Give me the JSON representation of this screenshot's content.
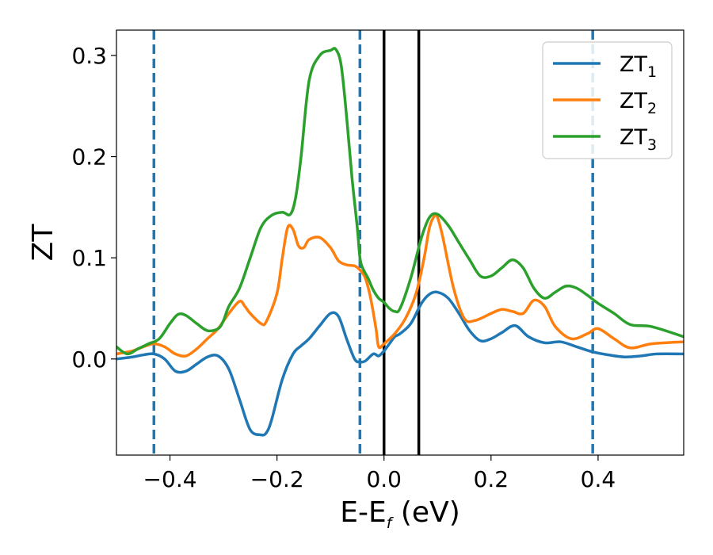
{
  "chart_data": {
    "type": "line",
    "xlabel": {
      "main": "E-E",
      "sub": "f",
      "unit": " (eV)"
    },
    "ylabel": "ZT",
    "xlim": [
      -0.5,
      0.56
    ],
    "ylim": [
      -0.095,
      0.325
    ],
    "xticks": [
      -0.4,
      -0.2,
      0.0,
      0.2,
      0.4
    ],
    "xtick_labels": [
      "−0.4",
      "−0.2",
      "0.0",
      "0.2",
      "0.4"
    ],
    "yticks": [
      0.0,
      0.1,
      0.2,
      0.3
    ],
    "ytick_labels": [
      "0.0",
      "0.1",
      "0.2",
      "0.3"
    ],
    "grid": false,
    "legend_position": "top-right",
    "vlines": [
      {
        "x": -0.43,
        "style": "dashed",
        "color": "#1f77b4"
      },
      {
        "x": -0.045,
        "style": "dashed",
        "color": "#1f77b4"
      },
      {
        "x": 0.0,
        "style": "solid",
        "color": "#000000"
      },
      {
        "x": 0.065,
        "style": "solid",
        "color": "#000000"
      },
      {
        "x": 0.39,
        "style": "dashed",
        "color": "#1f77b4"
      }
    ],
    "series": [
      {
        "name": "ZT",
        "sub": "1",
        "color": "#1f77b4",
        "x": [
          -0.5,
          -0.47,
          -0.45,
          -0.43,
          -0.41,
          -0.39,
          -0.37,
          -0.35,
          -0.33,
          -0.31,
          -0.29,
          -0.27,
          -0.25,
          -0.23,
          -0.22,
          -0.21,
          -0.19,
          -0.17,
          -0.155,
          -0.14,
          -0.12,
          -0.1,
          -0.085,
          -0.07,
          -0.055,
          -0.045,
          -0.035,
          -0.02,
          -0.01,
          0.0,
          0.01,
          0.02,
          0.03,
          0.05,
          0.07,
          0.085,
          0.1,
          0.12,
          0.14,
          0.16,
          0.18,
          0.2,
          0.22,
          0.245,
          0.27,
          0.3,
          0.33,
          0.36,
          0.39,
          0.42,
          0.45,
          0.48,
          0.51,
          0.56
        ],
        "y": [
          0.0,
          0.002,
          0.004,
          0.005,
          0.0,
          -0.012,
          -0.012,
          -0.005,
          0.002,
          0.003,
          -0.01,
          -0.04,
          -0.07,
          -0.075,
          -0.073,
          -0.06,
          -0.02,
          0.005,
          0.013,
          0.02,
          0.033,
          0.045,
          0.042,
          0.02,
          0.0,
          -0.003,
          -0.002,
          0.005,
          0.003,
          0.008,
          0.015,
          0.022,
          0.025,
          0.035,
          0.055,
          0.064,
          0.066,
          0.06,
          0.045,
          0.028,
          0.018,
          0.02,
          0.026,
          0.033,
          0.022,
          0.016,
          0.017,
          0.012,
          0.007,
          0.004,
          0.002,
          0.003,
          0.005,
          0.005
        ]
      },
      {
        "name": "ZT",
        "sub": "2",
        "color": "#ff7f0e",
        "x": [
          -0.5,
          -0.47,
          -0.45,
          -0.43,
          -0.41,
          -0.39,
          -0.37,
          -0.35,
          -0.33,
          -0.31,
          -0.29,
          -0.27,
          -0.26,
          -0.25,
          -0.23,
          -0.22,
          -0.2,
          -0.19,
          -0.18,
          -0.17,
          -0.16,
          -0.15,
          -0.14,
          -0.12,
          -0.1,
          -0.085,
          -0.07,
          -0.055,
          -0.045,
          -0.035,
          -0.025,
          -0.015,
          -0.01,
          0.0,
          0.02,
          0.04,
          0.06,
          0.075,
          0.085,
          0.095,
          0.1,
          0.11,
          0.13,
          0.15,
          0.17,
          0.2,
          0.22,
          0.24,
          0.26,
          0.28,
          0.3,
          0.32,
          0.35,
          0.38,
          0.4,
          0.43,
          0.46,
          0.5,
          0.56
        ],
        "y": [
          0.005,
          0.008,
          0.012,
          0.015,
          0.012,
          0.005,
          0.003,
          0.01,
          0.02,
          0.03,
          0.045,
          0.057,
          0.052,
          0.045,
          0.035,
          0.037,
          0.065,
          0.1,
          0.13,
          0.128,
          0.112,
          0.11,
          0.118,
          0.12,
          0.11,
          0.097,
          0.093,
          0.092,
          0.088,
          0.08,
          0.06,
          0.03,
          0.012,
          0.015,
          0.025,
          0.04,
          0.065,
          0.1,
          0.13,
          0.142,
          0.14,
          0.12,
          0.07,
          0.04,
          0.038,
          0.045,
          0.049,
          0.047,
          0.045,
          0.058,
          0.052,
          0.032,
          0.02,
          0.025,
          0.03,
          0.02,
          0.011,
          0.015,
          0.017
        ]
      },
      {
        "name": "ZT",
        "sub": "3",
        "color": "#2ca02c",
        "x": [
          -0.5,
          -0.48,
          -0.46,
          -0.44,
          -0.42,
          -0.4,
          -0.385,
          -0.37,
          -0.35,
          -0.33,
          -0.31,
          -0.3,
          -0.29,
          -0.27,
          -0.25,
          -0.23,
          -0.21,
          -0.19,
          -0.175,
          -0.165,
          -0.155,
          -0.14,
          -0.12,
          -0.1,
          -0.09,
          -0.08,
          -0.07,
          -0.06,
          -0.05,
          -0.045,
          -0.04,
          -0.03,
          -0.02,
          -0.01,
          0.0,
          0.01,
          0.02,
          0.03,
          0.05,
          0.07,
          0.085,
          0.1,
          0.12,
          0.14,
          0.16,
          0.18,
          0.2,
          0.22,
          0.24,
          0.26,
          0.28,
          0.3,
          0.32,
          0.34,
          0.36,
          0.38,
          0.4,
          0.43,
          0.46,
          0.5,
          0.56
        ],
        "y": [
          0.012,
          0.005,
          0.01,
          0.015,
          0.02,
          0.035,
          0.044,
          0.043,
          0.035,
          0.028,
          0.03,
          0.038,
          0.052,
          0.07,
          0.1,
          0.13,
          0.142,
          0.145,
          0.143,
          0.16,
          0.2,
          0.275,
          0.3,
          0.305,
          0.306,
          0.29,
          0.24,
          0.18,
          0.13,
          0.1,
          0.09,
          0.08,
          0.068,
          0.06,
          0.056,
          0.05,
          0.047,
          0.05,
          0.08,
          0.12,
          0.14,
          0.143,
          0.132,
          0.115,
          0.098,
          0.082,
          0.082,
          0.09,
          0.098,
          0.09,
          0.07,
          0.06,
          0.066,
          0.072,
          0.07,
          0.063,
          0.055,
          0.045,
          0.034,
          0.032,
          0.022
        ]
      }
    ]
  }
}
